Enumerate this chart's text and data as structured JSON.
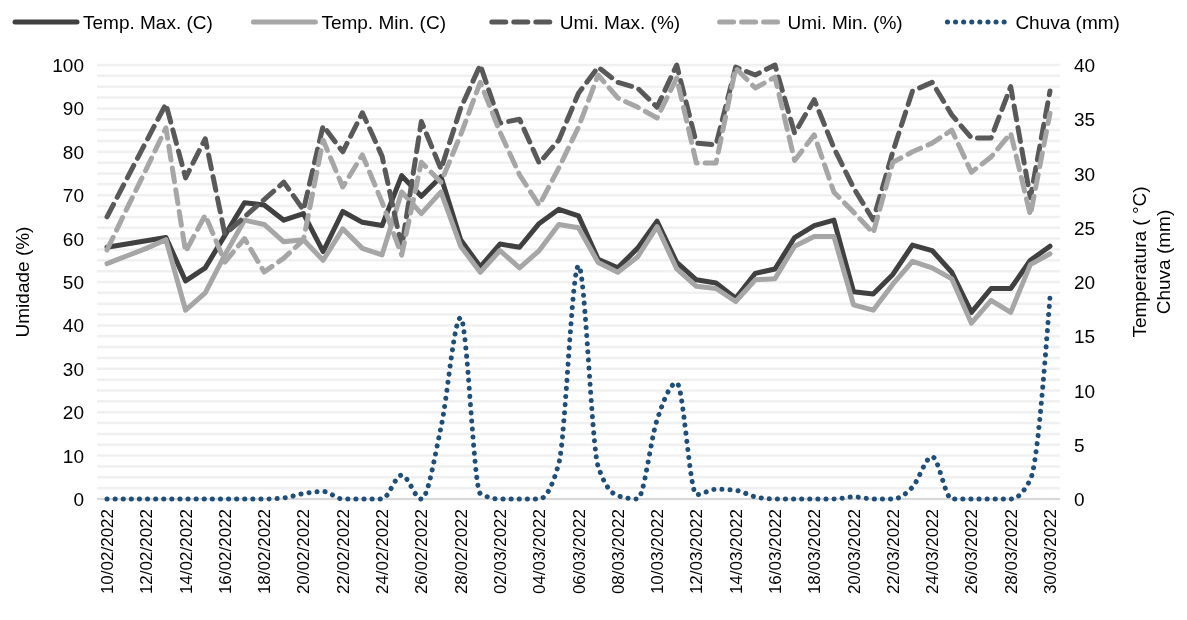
{
  "chart_data": {
    "type": "line",
    "ylabel": "Umidade (%)",
    "y2label": "Temperatura ( °C)\nChuva (mm)",
    "categories": [
      "10/02/2022",
      null,
      "12/02/2022",
      null,
      "14/02/2022",
      null,
      "16/02/2022",
      null,
      "18/02/2022",
      null,
      "20/02/2022",
      null,
      "22/02/2022",
      null,
      "24/02/2022",
      null,
      "26/02/2022",
      null,
      "28/02/2022",
      null,
      "02/03/2022",
      null,
      "04/03/2022",
      null,
      "06/03/2022",
      null,
      "08/03/2022",
      null,
      "10/03/2022",
      null,
      "12/03/2022",
      null,
      "14/03/2022",
      null,
      "16/03/2022",
      null,
      "18/03/2022",
      null,
      "20/03/2022",
      null,
      "22/03/2022",
      null,
      "24/03/2022",
      null,
      "26/03/2022",
      null,
      "28/03/2022",
      null,
      "30/03/2022"
    ],
    "ylim": [
      0,
      100
    ],
    "yticks": [
      0,
      10,
      20,
      30,
      40,
      50,
      60,
      70,
      80,
      90,
      100
    ],
    "y2lim": [
      0,
      40
    ],
    "y2ticks": [
      0,
      {
        "value": 1,
        "label": null
      },
      {
        "value": 2,
        "label": null
      },
      {
        "value": 3,
        "label": null
      },
      {
        "value": 4,
        "label": null
      },
      5,
      {
        "value": 6,
        "label": null
      },
      {
        "value": 7,
        "label": null
      },
      {
        "value": 8,
        "label": null
      },
      {
        "value": 9,
        "label": null
      },
      10,
      {
        "value": 11,
        "label": null
      },
      {
        "value": 12,
        "label": null
      },
      {
        "value": 13,
        "label": null
      },
      {
        "value": 14,
        "label": null
      },
      15,
      {
        "value": 16,
        "label": null
      },
      {
        "value": 17,
        "label": null
      },
      {
        "value": 18,
        "label": null
      },
      {
        "value": 19,
        "label": null
      },
      20,
      {
        "value": 21,
        "label": null
      },
      {
        "value": 22,
        "label": null
      },
      {
        "value": 23,
        "label": null
      },
      {
        "value": 24,
        "label": null
      },
      25,
      {
        "value": 26,
        "label": null
      },
      {
        "value": 27,
        "label": null
      },
      {
        "value": 28,
        "label": null
      },
      {
        "value": 29,
        "label": null
      },
      30,
      {
        "value": 31,
        "label": null
      },
      {
        "value": 32,
        "label": null
      },
      {
        "value": 33,
        "label": null
      },
      {
        "value": 34,
        "label": null
      },
      35,
      {
        "value": 36,
        "label": null
      },
      {
        "value": 37,
        "label": null
      },
      {
        "value": 38,
        "label": null
      },
      {
        "value": 39,
        "label": null
      },
      40
    ],
    "grid": true,
    "legend": "top",
    "marker": "none",
    "series": [
      {
        "name": "Temp. Max. (C)",
        "color": "#404040",
        "axis": "y2",
        "line_style": "solid",
        "values": [
          23.2,
          23.5,
          23.8,
          24.1,
          20.1,
          21.3,
          24.3,
          27.3,
          27.1,
          25.7,
          26.3,
          22.8,
          26.5,
          25.5,
          25.2,
          29.8,
          27.9,
          29.7,
          23.9,
          21.4,
          23.5,
          23.2,
          25.4,
          26.7,
          26.1,
          22.1,
          21.3,
          23.1,
          25.6,
          21.8,
          20.2,
          19.9,
          18.5,
          20.8,
          21.2,
          24.1,
          25.2,
          25.7,
          19.1,
          18.9,
          20.7,
          23.4,
          22.9,
          20.9,
          17.2,
          19.4,
          19.4,
          22.0,
          23.3
        ]
      },
      {
        "name": "Temp. Min. (C)",
        "color": "#a6a6a6",
        "axis": "y2",
        "line_style": "solid",
        "values": [
          21.7,
          22.4,
          23.1,
          23.9,
          17.4,
          19.0,
          22.5,
          25.7,
          25.3,
          23.7,
          23.9,
          22.0,
          24.9,
          23.1,
          22.5,
          28.3,
          26.3,
          28.3,
          23.3,
          20.9,
          22.9,
          21.3,
          22.9,
          25.3,
          25.0,
          21.8,
          20.9,
          22.3,
          25.1,
          21.2,
          19.6,
          19.4,
          18.2,
          20.2,
          20.3,
          23.3,
          24.2,
          24.2,
          17.9,
          17.4,
          19.8,
          21.9,
          21.3,
          20.3,
          16.2,
          18.3,
          17.2,
          21.6,
          22.6
        ]
      },
      {
        "name": "Umi. Max. (%)",
        "color": "#595959",
        "line_style": "dashed",
        "values": [
          65,
          73.7,
          82.4,
          91,
          74,
          83,
          61,
          65,
          69,
          73,
          66.6,
          86,
          80,
          89,
          79,
          58,
          87,
          76,
          90,
          100,
          86.6,
          87.5,
          77.4,
          82.7,
          93.5,
          99.5,
          96,
          94.7,
          90.3,
          100,
          82,
          81.6,
          99.5,
          97.7,
          100,
          84.3,
          92,
          80.9,
          71.7,
          64.3,
          80,
          94,
          96,
          88.5,
          83.2,
          83.2,
          95,
          69.4,
          94
        ]
      },
      {
        "name": "Umi. Min. (%)",
        "color": "#a6a6a6",
        "line_style": "dashed",
        "values": [
          57.4,
          66.8,
          76,
          85.5,
          57,
          65.4,
          54.6,
          60,
          52.3,
          55.5,
          59.7,
          82.7,
          71.9,
          79.3,
          68.4,
          56.2,
          77.6,
          73,
          83.9,
          96,
          84.6,
          74.7,
          67.7,
          76.3,
          85.7,
          97.7,
          92.4,
          90.3,
          87.8,
          97,
          77.4,
          77.4,
          99.3,
          94.7,
          97.2,
          78,
          83.9,
          70.7,
          66.1,
          61.3,
          77.6,
          80,
          82,
          85,
          75.3,
          78.8,
          84.3,
          65.4,
          88.9
        ]
      },
      {
        "name": "Chuva (mm)",
        "color": "#1f4e79",
        "axis": "y2",
        "line_style": "dotted",
        "values": [
          0,
          0,
          0,
          0,
          0,
          0,
          0,
          0,
          0,
          0.1,
          0.5,
          0.7,
          0,
          0,
          0,
          2.2,
          0,
          6.6,
          16.7,
          0.5,
          0,
          0,
          0,
          3.3,
          21.5,
          3.0,
          0.3,
          0,
          7.3,
          10.7,
          0.4,
          0.9,
          0.8,
          0.2,
          0,
          0,
          0,
          0,
          0.2,
          0,
          0,
          1.1,
          3.9,
          0,
          0,
          0,
          0,
          1.8,
          18.6
        ]
      }
    ]
  }
}
